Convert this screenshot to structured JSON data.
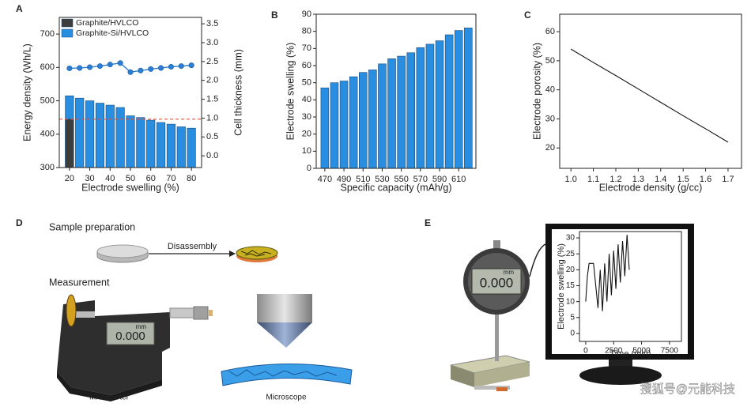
{
  "chart_data": [
    {
      "type": "bar",
      "panel": "A",
      "xlabel": "Electrode swelling (%)",
      "ylabel": "Energy density (Wh/L)",
      "y2label": "Cell thickness (mm)",
      "x": [
        20,
        25,
        30,
        35,
        40,
        45,
        50,
        55,
        60,
        65,
        70,
        75,
        80
      ],
      "xlim": [
        15,
        85
      ],
      "xticks": [
        20,
        30,
        40,
        50,
        60,
        70,
        80
      ],
      "ylim": [
        300,
        750
      ],
      "yticks": [
        300,
        400,
        500,
        600,
        700
      ],
      "y2lim": [
        -0.31,
        3.67
      ],
      "y2ticks": [
        {
          "value": 0,
          "label": "0.0"
        },
        {
          "value": 0.5,
          "label": "0.5"
        },
        {
          "value": 1,
          "label": "1.0"
        },
        {
          "value": 1.5,
          "label": "1.5"
        },
        {
          "value": 2,
          "label": "2.0"
        },
        {
          "value": 2.5,
          "label": "2.5"
        },
        {
          "value": 3,
          "label": "3.0"
        },
        {
          "value": 3.5,
          "label": "3.5"
        }
      ],
      "series": [
        {
          "name": "Graphite/HVLCO",
          "color": "#3d3d3d",
          "values": [
            445,
            null,
            null,
            null,
            null,
            null,
            null,
            null,
            null,
            null,
            null,
            null,
            null
          ]
        },
        {
          "name": "Graphite-Si/HVLCO",
          "color": "#2a8ee0",
          "values": [
            515,
            508,
            500,
            493,
            487,
            480,
            455,
            450,
            442,
            435,
            430,
            422,
            418
          ]
        },
        {
          "type": "line",
          "axis": "y2",
          "color": "#2a7fd4",
          "values": [
            2.32,
            2.33,
            2.35,
            2.38,
            2.42,
            2.46,
            2.22,
            2.26,
            2.3,
            2.33,
            2.36,
            2.38,
            2.4
          ]
        }
      ],
      "reference_line": {
        "value": 445,
        "color": "#e8503a"
      }
    },
    {
      "type": "bar",
      "panel": "B",
      "xlabel": "Specific capacity (mAh/g)",
      "ylabel": "Electrode swelling (%)",
      "x": [
        470,
        480,
        490,
        500,
        510,
        520,
        530,
        540,
        550,
        560,
        570,
        580,
        590,
        600,
        610,
        620
      ],
      "xlim": [
        461,
        628
      ],
      "xticks": [
        470,
        490,
        510,
        530,
        550,
        570,
        590,
        610
      ],
      "ylim": [
        0,
        90
      ],
      "yticks": [
        0,
        10,
        20,
        30,
        40,
        50,
        60,
        70,
        80,
        90
      ],
      "series": [
        {
          "color": "#2a8ee0",
          "values": [
            47,
            50,
            51,
            53.5,
            56,
            57.5,
            61,
            64,
            65.5,
            67.5,
            70.5,
            72.5,
            74.5,
            78,
            80.5,
            82
          ]
        }
      ]
    },
    {
      "type": "line",
      "panel": "C",
      "xlabel": "Electrode density (g/cc)",
      "ylabel": "Electrode porosity (%)",
      "x": [
        1.0,
        1.1,
        1.2,
        1.3,
        1.4,
        1.5,
        1.6,
        1.7
      ],
      "values": [
        54,
        49.4,
        44.9,
        40.3,
        35.7,
        31.1,
        26.6,
        22
      ],
      "color": "#111111",
      "xlim": [
        0.95,
        1.76
      ],
      "xticks": [
        {
          "value": 1,
          "label": "1.0"
        },
        1.1,
        1.2,
        1.3,
        1.4,
        1.5,
        1.6,
        1.7
      ],
      "ylim": [
        13,
        66
      ],
      "yticks": [
        20,
        30,
        40,
        50,
        60
      ]
    },
    {
      "type": "line",
      "xlabel": "Time (min)",
      "ylabel": "Electrode swelling (%)",
      "x": [
        0,
        150,
        300,
        700,
        1100,
        1300,
        1500,
        1700,
        1900,
        2100,
        2300,
        2500,
        2700,
        2900,
        3100,
        3300,
        3500,
        3700,
        3900
      ],
      "values": [
        10,
        18,
        22,
        22,
        8,
        20,
        7,
        22,
        10,
        25,
        12,
        26,
        14,
        28,
        16,
        29,
        18,
        31,
        20
      ],
      "color": "#111111",
      "xlim": [
        -560,
        8570
      ],
      "xticks": [
        0,
        2500,
        5000,
        7500
      ],
      "ylim": [
        -2.5,
        32
      ],
      "yticks": [
        0,
        5,
        10,
        15,
        20,
        25,
        30
      ]
    }
  ],
  "illustration": {
    "panel_d": "D",
    "sample_preparation": "Sample preparation",
    "disassembly": "Disassembly",
    "measurement": "Measurement",
    "micrometer_unit": "mm",
    "micrometer_reading": "0.000",
    "micrometer": "Micrometer",
    "microscope": "Microscope",
    "panel_e": "E",
    "gauge_unit": "mm",
    "gauge_reading": "0.000",
    "watermark": "搜狐号@元能科技"
  }
}
